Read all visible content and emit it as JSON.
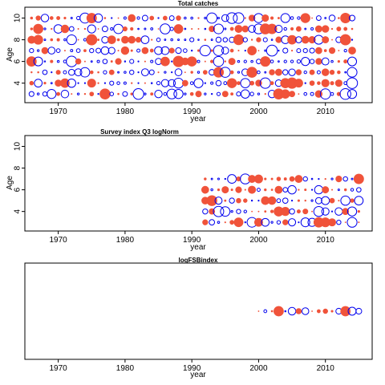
{
  "chart_data": [
    {
      "type": "bubble-residual",
      "title": "Total catches",
      "xlabel": "year",
      "ylabel": "Age",
      "xlim": [
        1965,
        2017
      ],
      "ylim": [
        2.2,
        11
      ],
      "xticks": [
        1970,
        1980,
        1990,
        2000,
        2010
      ],
      "yticks": [
        4,
        6,
        8,
        10
      ],
      "years": [
        1966,
        2014
      ],
      "ages": [
        3,
        10
      ],
      "positive_color": "#f0533a",
      "negative_color": "#0000ee"
    },
    {
      "type": "bubble-residual",
      "title": "Survey index Q3 logNorm",
      "xlabel": "year",
      "ylabel": "Age",
      "xlim": [
        1965,
        2017
      ],
      "ylim": [
        2.2,
        11
      ],
      "xticks": [
        1970,
        1980,
        1990,
        2000,
        2010
      ],
      "yticks": [
        4,
        6,
        8,
        10
      ],
      "years": [
        1992,
        2015
      ],
      "ages": [
        3,
        7
      ],
      "positive_color": "#f0533a",
      "negative_color": "#0000ee"
    },
    {
      "type": "bubble-residual",
      "title": "logFSBindex",
      "xlabel": "year",
      "ylabel": "",
      "xlim": [
        1965,
        2017
      ],
      "ylim": [
        0,
        1
      ],
      "xticks": [
        1970,
        1980,
        1990,
        2000,
        2010
      ],
      "yticks": [],
      "years": [
        2000,
        2015
      ],
      "ages": [],
      "positive_color": "#f0533a",
      "negative_color": "#0000ee"
    }
  ]
}
